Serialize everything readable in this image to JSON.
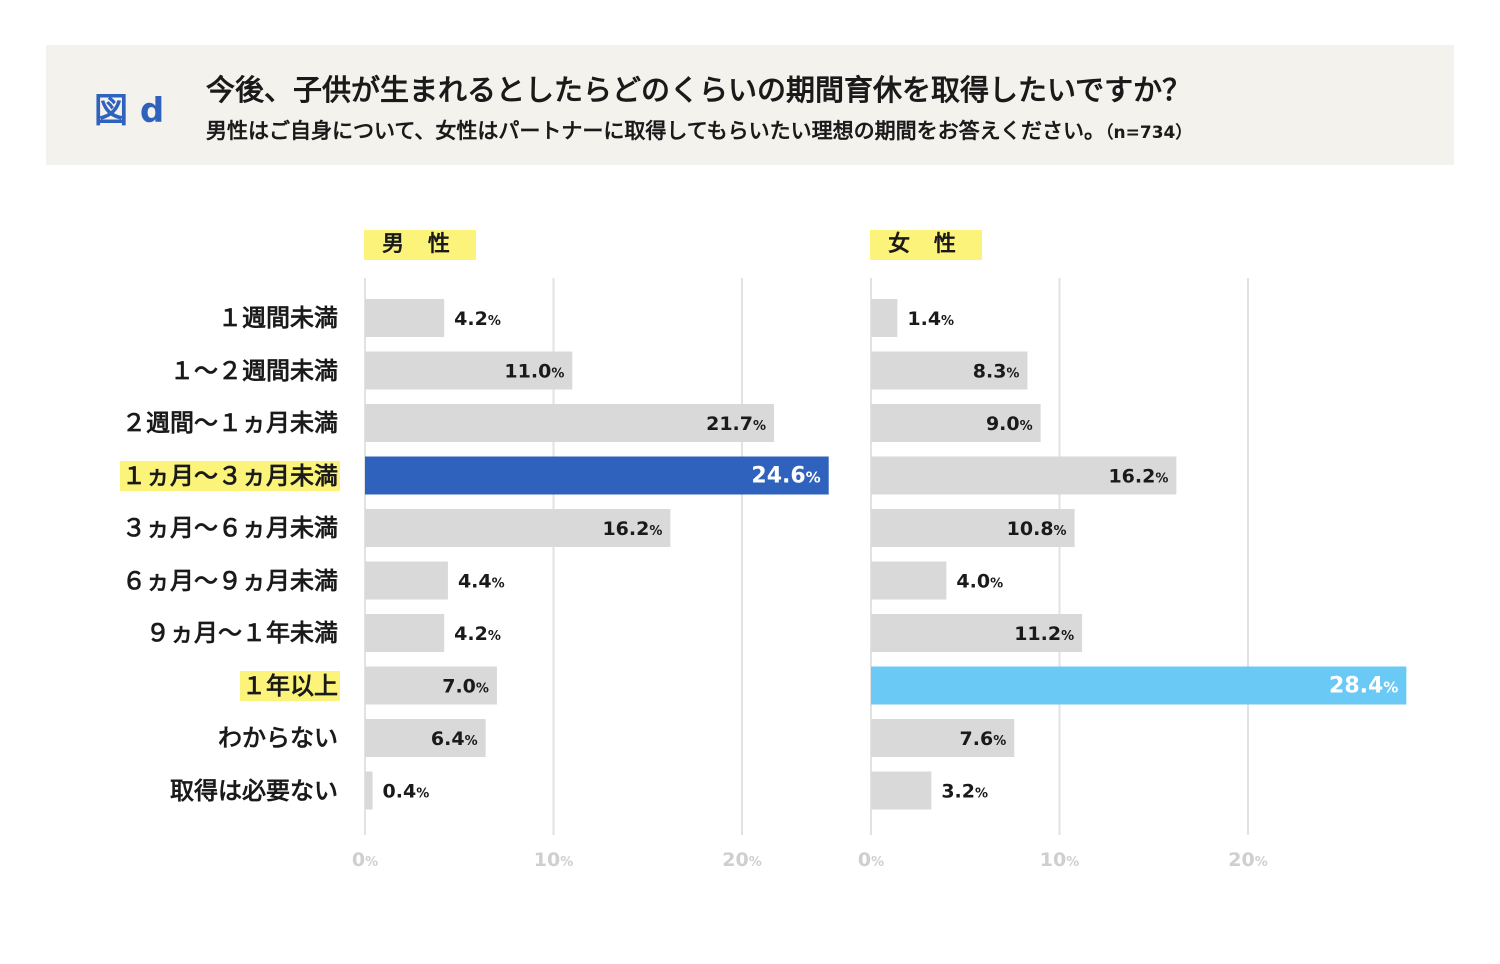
{
  "header": {
    "figure_label": "図 d",
    "title": "今後、子供が生まれるとしたらどのくらいの期間育休を取得したいですか？",
    "subtitle": "男性はご自身について、女性はパートナーに取得してもらいたい理想の期間をお答えください。",
    "sample": "（n=734）"
  },
  "chart_data": {
    "type": "bar",
    "orientation": "horizontal",
    "categories": [
      "１週間未満",
      "１～２週間未満",
      "２週間～１ヵ月未満",
      "１ヵ月～３ヵ月未満",
      "３ヵ月～６ヵ月未満",
      "６ヵ月～９ヵ月未満",
      "９ヵ月～１年未満",
      "１年以上",
      "わからない",
      "取得は必要ない"
    ],
    "highlighted_categories": [
      "１ヵ月～３ヵ月未満",
      "１年以上"
    ],
    "series": [
      {
        "name": "男 性",
        "values": [
          4.2,
          11.0,
          21.7,
          24.6,
          16.2,
          4.4,
          4.2,
          7.0,
          6.4,
          0.4
        ],
        "highlight_index": 3,
        "highlight_color": "#2f62bc"
      },
      {
        "name": "女 性",
        "values": [
          1.4,
          8.3,
          9.0,
          16.2,
          10.8,
          4.0,
          11.2,
          28.4,
          7.6,
          3.2
        ],
        "highlight_index": 7,
        "highlight_color": "#6bcaf5"
      }
    ],
    "x_ticks": [
      0,
      10,
      20
    ],
    "tick_suffix": "%",
    "xlim": [
      0,
      30
    ],
    "grid": true,
    "value_suffix": "%"
  },
  "colors": {
    "bar_default": "#d9d9d9",
    "grid": "#e2e2e2",
    "tick_text": "#cfcfcf",
    "highlight_bg": "#fbf37a"
  }
}
